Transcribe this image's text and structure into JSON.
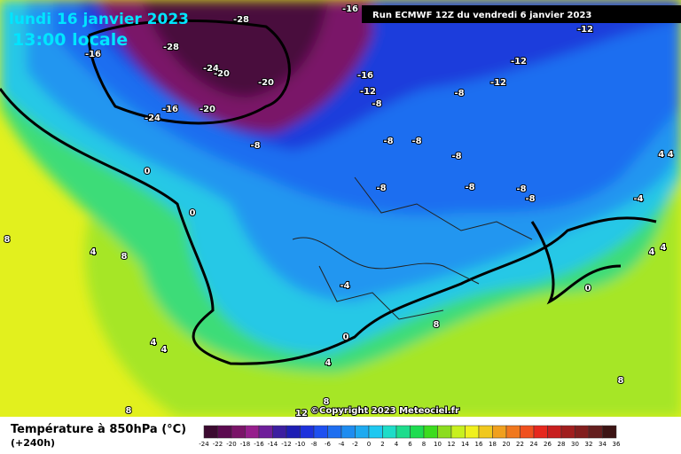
{
  "header": {
    "date": "lundi 16 janvier 2023",
    "time": "13:00 locale",
    "run": "Run ECMWF 12Z du vendredi 6 janvier 2023",
    "copyright": "©Copyright 2023 Meteociel.fr"
  },
  "map": {
    "labels": [
      "-28",
      "-16",
      "-12",
      "-16",
      "-28",
      "-24",
      "-20",
      "-20",
      "-16",
      "-12",
      "-12",
      "-8",
      "-12",
      "-24",
      "-16",
      "-20",
      "-8",
      "-8",
      "-8",
      "-8",
      "-8",
      "0",
      "0",
      "-8",
      "-8",
      "-8",
      "-8",
      "-4",
      "4 4",
      "8",
      "4",
      "8",
      "4",
      "4",
      "0",
      "-4",
      "4",
      "4",
      "0",
      "4",
      "8",
      "8",
      "8",
      "12",
      "8"
    ]
  },
  "legend": {
    "title": "Température à 850hPa (°C)",
    "subtitle": "(+240h)",
    "ticks": [
      -24,
      -22,
      -20,
      -18,
      -16,
      -14,
      -12,
      -10,
      -8,
      -6,
      -4,
      -2,
      0,
      2,
      4,
      6,
      8,
      10,
      12,
      14,
      16,
      18,
      20,
      22,
      24,
      26,
      28,
      30,
      32,
      34,
      36
    ],
    "colors": [
      "#3c0a30",
      "#5c0a50",
      "#7a1468",
      "#961e8c",
      "#6e1e9a",
      "#3c1ea0",
      "#1e1eb4",
      "#1e32dc",
      "#1e50f0",
      "#1e6ef0",
      "#1e8cf0",
      "#1eaaf0",
      "#1ec8f0",
      "#1edcc8",
      "#1edc8c",
      "#1edc50",
      "#3cdc1e",
      "#8cdc1e",
      "#c8f01e",
      "#f0f01e",
      "#f0c81e",
      "#f0a01e",
      "#f0781e",
      "#f0501e",
      "#e6281e",
      "#c81e1e",
      "#a01e1e",
      "#821e1e",
      "#641e1e",
      "#3c1414"
    ]
  }
}
